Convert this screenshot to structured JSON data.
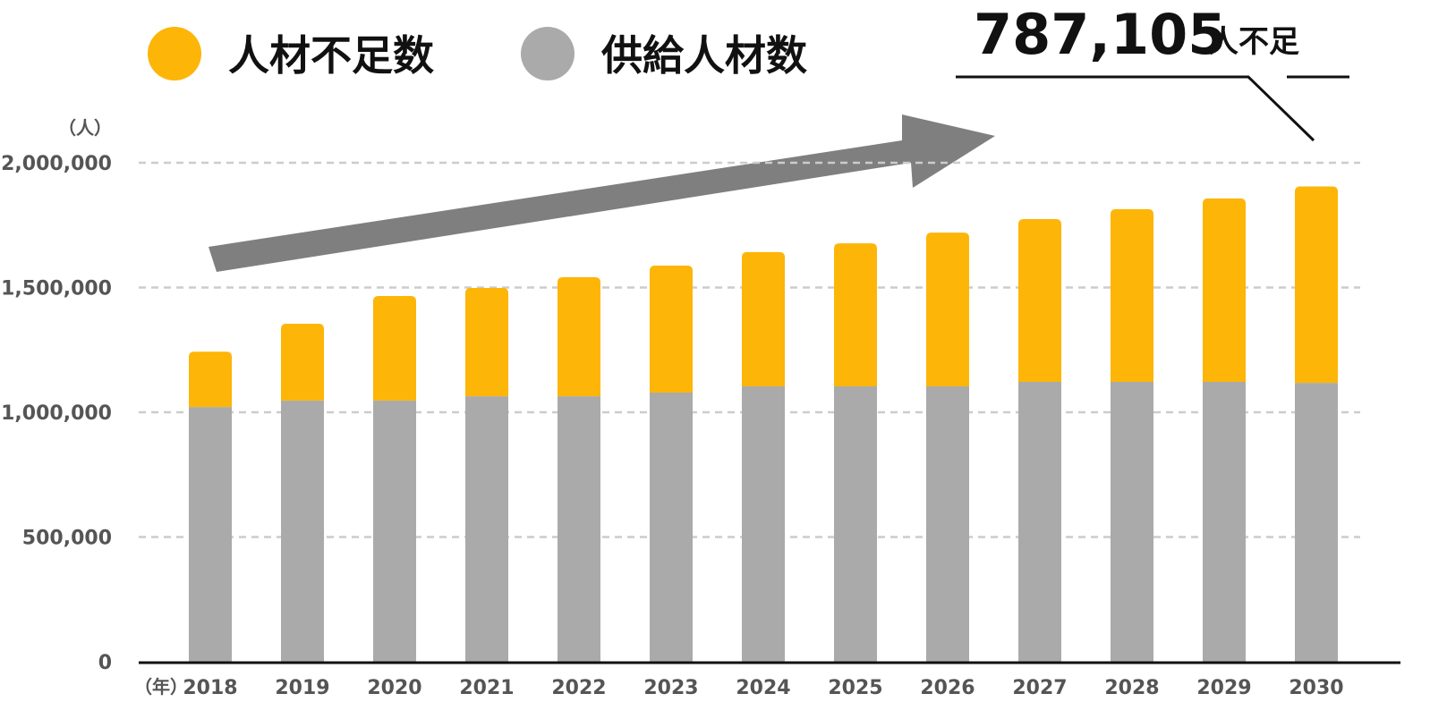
{
  "chart_data": {
    "type": "bar",
    "stacked": true,
    "y_unit": "（人）",
    "x_unit": "（年）",
    "categories": [
      "2018",
      "2019",
      "2020",
      "2021",
      "2022",
      "2023",
      "2024",
      "2025",
      "2026",
      "2027",
      "2028",
      "2029",
      "2030"
    ],
    "series": [
      {
        "name": "人材不足数",
        "color": "#fdb507",
        "values": [
          222000,
          308000,
          419000,
          434000,
          477000,
          509000,
          538000,
          573000,
          616000,
          652000,
          692000,
          735000,
          787105
        ]
      },
      {
        "name": "供給人材数",
        "color": "#aaaaaa",
        "values": [
          1021000,
          1047000,
          1047000,
          1064000,
          1064000,
          1079000,
          1104000,
          1104000,
          1104000,
          1122000,
          1122000,
          1122000,
          1118000
        ]
      }
    ],
    "ylim": [
      0,
      2000000
    ],
    "yticks": [
      0,
      {
        "value": 500000,
        "label": "500,000"
      },
      {
        "value": 1000000,
        "label": "1,000,000"
      },
      {
        "value": 1500000,
        "label": "1,500,000"
      },
      {
        "value": 2000000,
        "label": "2,000,000"
      }
    ],
    "grid": true,
    "annotation": {
      "value": "787,105",
      "unit": "人不足"
    }
  }
}
